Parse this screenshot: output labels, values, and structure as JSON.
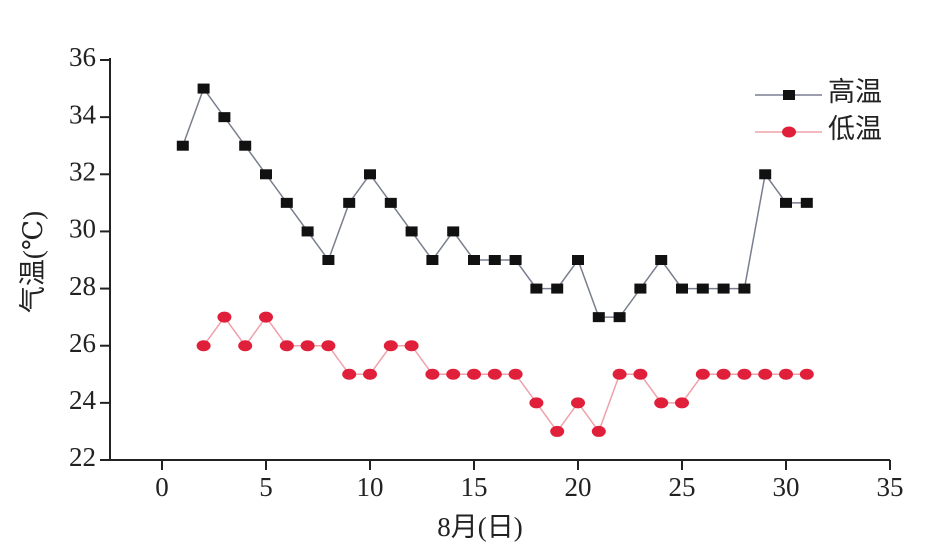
{
  "chart_data": {
    "type": "line",
    "x_label": "8月(日)",
    "y_label": "气温(℃)",
    "x": [
      1,
      2,
      3,
      4,
      5,
      6,
      7,
      8,
      9,
      10,
      11,
      12,
      13,
      14,
      15,
      16,
      17,
      18,
      19,
      20,
      21,
      22,
      23,
      24,
      25,
      26,
      27,
      28,
      29,
      30,
      31
    ],
    "series": [
      {
        "name": "高温",
        "color": "#111111",
        "line_color": "#7a7f90",
        "marker": "square",
        "values": [
          33,
          35,
          34,
          33,
          32,
          31,
          30,
          29,
          31,
          32,
          31,
          30,
          29,
          30,
          29,
          29,
          29,
          28,
          28,
          29,
          27,
          27,
          28,
          29,
          28,
          28,
          28,
          28,
          32,
          31,
          31
        ]
      },
      {
        "name": "低温",
        "color": "#e0203a",
        "line_color": "#f0a0aa",
        "marker": "circle",
        "values": [
          null,
          26,
          27,
          26,
          27,
          26,
          26,
          26,
          25,
          25,
          26,
          26,
          25,
          25,
          25,
          25,
          25,
          24,
          23,
          24,
          23,
          25,
          25,
          24,
          24,
          25,
          25,
          25,
          25,
          25,
          25
        ]
      }
    ],
    "xlim": [
      -2.5,
      35
    ],
    "xticks": [
      0,
      5,
      10,
      15,
      20,
      25,
      30,
      35
    ],
    "ylim": [
      22,
      36
    ],
    "yticks": [
      22,
      24,
      26,
      28,
      30,
      32,
      34,
      36
    ],
    "legend": "upper right"
  }
}
